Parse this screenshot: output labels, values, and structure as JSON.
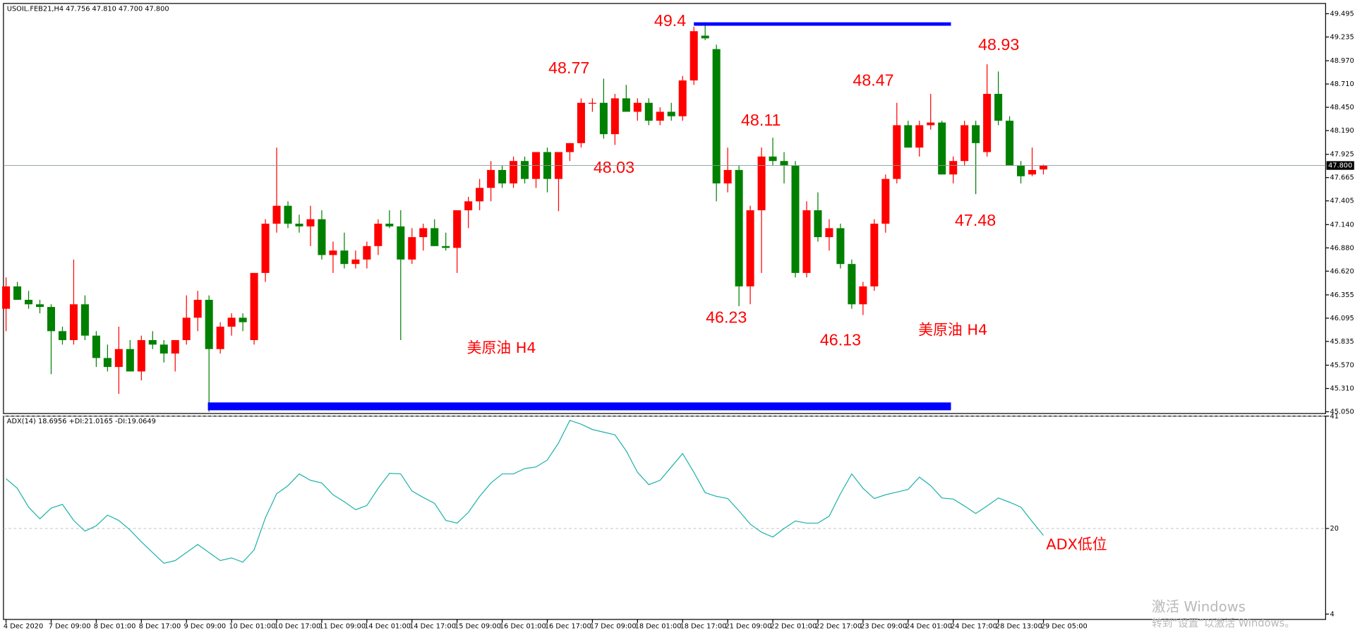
{
  "chart_data": [
    {
      "type": "candlestick",
      "header": "USOIL.FEB21,H4  47.756 47.810 47.700 47.800",
      "up_color": "#ff0000",
      "down_color": "#008000",
      "categories": [
        "4 Dec 2020",
        null,
        null,
        null,
        "7 Dec 09:00",
        null,
        null,
        null,
        "8 Dec 01:00",
        null,
        null,
        null,
        "8 Dec 17:00",
        null,
        null,
        null,
        "9 Dec 09:00",
        null,
        null,
        null,
        "10 Dec 01:00",
        null,
        null,
        null,
        "10 Dec 17:00",
        null,
        null,
        null,
        "11 Dec 09:00",
        null,
        null,
        null,
        "14 Dec 01:00",
        null,
        null,
        null,
        "14 Dec 17:00",
        null,
        null,
        null,
        "15 Dec 09:00",
        null,
        null,
        null,
        "16 Dec 01:00",
        null,
        null,
        null,
        "16 Dec 17:00",
        null,
        null,
        null,
        "17 Dec 09:00",
        null,
        null,
        null,
        "18 Dec 01:00",
        null,
        null,
        null,
        "18 Dec 17:00",
        null,
        null,
        null,
        "21 Dec 09:00",
        null,
        null,
        null,
        "22 Dec 01:00",
        null,
        null,
        null,
        "22 Dec 17:00",
        null,
        null,
        null,
        "23 Dec 09:00",
        null,
        null,
        null,
        "24 Dec 01:00",
        null,
        null,
        null,
        "24 Dec 17:00",
        null,
        null,
        null,
        "28 Dec 13:00",
        null,
        null,
        null,
        "29 Dec 05:00"
      ],
      "open": [
        46.2,
        46.45,
        46.3,
        46.25,
        46.22,
        45.95,
        45.85,
        46.25,
        45.9,
        45.65,
        45.55,
        45.75,
        45.5,
        45.85,
        45.8,
        45.7,
        45.85,
        46.1,
        46.3,
        45.75,
        46.0,
        46.1,
        45.85,
        46.6,
        47.15,
        47.35,
        47.15,
        47.12,
        47.2,
        46.8,
        46.85,
        46.7,
        46.75,
        46.9,
        47.15,
        47.12,
        46.75,
        47.0,
        47.1,
        46.9,
        46.88,
        47.3,
        47.4,
        47.55,
        47.75,
        47.6,
        47.85,
        47.65,
        47.95,
        47.65,
        47.95,
        48.05,
        48.5,
        48.5,
        48.15,
        48.55,
        48.4,
        48.5,
        48.3,
        48.4,
        48.35,
        48.75,
        49.25,
        49.1,
        47.6,
        47.75,
        46.45,
        47.3,
        47.9,
        47.85,
        47.8,
        46.6,
        47.3,
        47.0,
        47.1,
        46.7,
        46.25,
        46.45,
        47.15,
        47.65,
        48.25,
        48.0,
        48.25,
        48.28,
        47.7,
        47.85,
        48.25,
        47.95,
        48.6,
        48.3,
        47.8,
        47.7,
        47.756
      ],
      "high": [
        46.55,
        46.5,
        46.4,
        46.3,
        46.25,
        46.0,
        46.75,
        46.35,
        45.95,
        45.8,
        46.0,
        45.85,
        45.9,
        45.95,
        45.85,
        45.85,
        46.35,
        46.4,
        46.35,
        46.05,
        46.15,
        46.15,
        46.6,
        47.2,
        48.0,
        47.4,
        47.25,
        47.35,
        47.3,
        46.95,
        47.05,
        46.85,
        46.95,
        47.2,
        47.3,
        47.3,
        47.1,
        47.15,
        47.2,
        47.05,
        47.3,
        47.45,
        47.65,
        47.85,
        47.8,
        47.9,
        47.9,
        47.95,
        48.0,
        47.95,
        48.05,
        48.55,
        48.55,
        48.77,
        48.6,
        48.7,
        48.55,
        48.55,
        48.45,
        48.5,
        48.8,
        49.35,
        49.4,
        49.15,
        48.0,
        47.8,
        47.35,
        48.0,
        48.11,
        47.95,
        47.85,
        47.4,
        47.5,
        47.2,
        47.15,
        46.75,
        46.5,
        47.2,
        47.7,
        48.5,
        48.3,
        48.3,
        48.6,
        48.3,
        47.9,
        48.3,
        48.3,
        48.93,
        48.85,
        48.35,
        47.85,
        48.0,
        47.81
      ],
      "low": [
        45.95,
        46.3,
        46.2,
        46.15,
        45.47,
        45.8,
        45.8,
        45.85,
        45.55,
        45.5,
        45.25,
        45.5,
        45.4,
        45.75,
        45.6,
        45.5,
        45.8,
        45.95,
        45.05,
        45.7,
        45.9,
        45.95,
        45.8,
        46.5,
        47.05,
        47.1,
        47.05,
        46.9,
        46.75,
        46.6,
        46.65,
        46.65,
        46.65,
        46.8,
        47.1,
        45.85,
        46.7,
        46.85,
        46.9,
        46.85,
        46.6,
        47.1,
        47.3,
        47.4,
        47.55,
        47.55,
        47.6,
        47.55,
        47.5,
        47.29,
        47.85,
        48.0,
        48.4,
        48.1,
        48.03,
        48.4,
        48.3,
        48.25,
        48.25,
        48.3,
        48.3,
        48.7,
        49.2,
        47.4,
        47.5,
        46.23,
        46.25,
        46.6,
        47.8,
        47.6,
        46.55,
        46.55,
        46.95,
        46.85,
        46.65,
        46.2,
        46.13,
        46.4,
        47.05,
        47.6,
        48.0,
        47.9,
        48.2,
        47.7,
        47.6,
        47.8,
        47.48,
        47.9,
        48.25,
        47.8,
        47.6,
        47.68,
        47.7
      ],
      "close": [
        46.45,
        46.3,
        46.25,
        46.22,
        45.95,
        45.85,
        46.25,
        45.9,
        45.65,
        45.55,
        45.75,
        45.5,
        45.85,
        45.8,
        45.7,
        45.85,
        46.1,
        46.3,
        45.75,
        46.0,
        46.1,
        46.05,
        46.6,
        47.15,
        47.35,
        47.15,
        47.12,
        47.2,
        46.8,
        46.85,
        46.7,
        46.75,
        46.9,
        47.15,
        47.12,
        46.75,
        47.0,
        47.1,
        46.9,
        46.88,
        47.3,
        47.4,
        47.55,
        47.75,
        47.6,
        47.85,
        47.65,
        47.95,
        47.65,
        47.95,
        48.05,
        48.5,
        48.5,
        48.15,
        48.55,
        48.4,
        48.5,
        48.3,
        48.4,
        48.35,
        48.75,
        49.3,
        49.22,
        47.6,
        47.75,
        46.45,
        47.3,
        47.9,
        47.85,
        47.8,
        46.6,
        47.3,
        47.0,
        47.1,
        46.7,
        46.25,
        46.45,
        47.15,
        47.65,
        48.25,
        48.0,
        48.25,
        48.28,
        47.7,
        47.85,
        48.25,
        48.05,
        48.6,
        48.3,
        47.8,
        47.68,
        47.75,
        47.8
      ],
      "ylim": [
        45.03,
        49.6
      ],
      "yticks": [
        49.495,
        49.235,
        {
          "value": 48.97,
          "label": "48.970"
        },
        {
          "value": 48.71,
          "label": "48.710"
        },
        {
          "value": 48.45,
          "label": "48.450"
        },
        {
          "value": 48.19,
          "label": "48.190"
        },
        47.925,
        47.665,
        47.405,
        {
          "value": 47.14,
          "label": "47.140"
        },
        {
          "value": 46.88,
          "label": "46.880"
        },
        {
          "value": 46.62,
          "label": "46.620"
        },
        46.355,
        46.095,
        45.835,
        {
          "value": 45.57,
          "label": "45.570"
        },
        {
          "value": 45.31,
          "label": "45.310"
        },
        {
          "value": 45.05,
          "label": "45.050"
        }
      ],
      "current": {
        "value": 47.8,
        "label": "47.800"
      },
      "hlines": [
        49.38,
        45.11
      ],
      "hline_color": "#0000ff",
      "annotations": [
        "49.4",
        "48.77",
        "48.03",
        "48.11",
        "46.23",
        "46.13",
        "48.47",
        "48.93",
        "47.48",
        "美原油   H4",
        "美原油  H4"
      ]
    },
    {
      "type": "line",
      "title": "ADX(14) 18.6956 +DI:21.0165 -DI:19.0649",
      "color": "#20b2aa",
      "values": [
        29.3,
        27.5,
        24,
        21.8,
        23.8,
        24.5,
        21.5,
        19.5,
        20.5,
        22.5,
        21.5,
        19.7,
        17.5,
        15.5,
        13.5,
        14,
        15.5,
        17,
        15.5,
        14,
        14.5,
        13.7,
        16,
        22,
        26.5,
        28,
        30.2,
        29,
        28.5,
        26.3,
        25,
        23.5,
        24.3,
        27.5,
        30.3,
        30.2,
        27,
        25.8,
        24.7,
        21.5,
        21,
        23,
        26,
        28.5,
        30.2,
        30.2,
        31.2,
        31.5,
        32.8,
        36,
        40.2,
        39.5,
        38.5,
        38,
        37.5,
        34.5,
        30.5,
        28.2,
        29,
        31.5,
        34,
        30.5,
        26.7,
        26,
        25.6,
        23.3,
        20.8,
        19.3,
        18.4,
        20,
        21.4,
        21,
        21,
        22.3,
        26.5,
        30.2,
        27.5,
        25.6,
        26.3,
        26.8,
        27.3,
        29.6,
        28,
        25.7,
        25.5,
        24.2,
        22.8,
        24.2,
        25.7,
        24.9,
        24,
        21.3,
        18.7
      ],
      "ylim": [
        3,
        41
      ],
      "yticks": [
        41,
        20,
        4
      ],
      "grid": [
        41,
        20
      ],
      "annotation": "ADX低位"
    }
  ],
  "watermark": [
    "激活 Windows",
    "转到“设置”以激活 Windows。"
  ]
}
